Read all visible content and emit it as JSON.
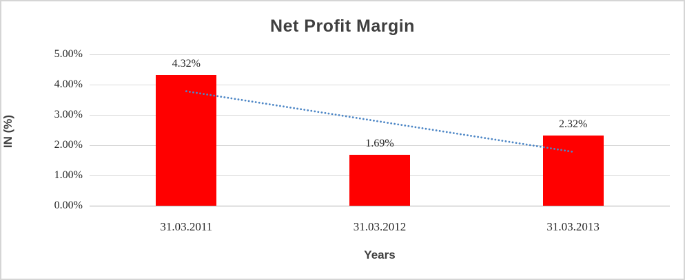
{
  "chart_data": {
    "type": "bar",
    "title": "Net Profit Margin",
    "xlabel": "Years",
    "ylabel": "IN (%)",
    "categories": [
      "31.03.2011",
      "31.03.2012",
      "31.03.2013"
    ],
    "values": [
      4.32,
      1.69,
      2.32
    ],
    "data_labels": [
      "4.32%",
      "1.69%",
      "2.32%"
    ],
    "ylim": [
      0,
      5
    ],
    "ytick_step": 1,
    "ytick_labels": [
      "0.00%",
      "1.00%",
      "2.00%",
      "3.00%",
      "4.00%",
      "5.00%"
    ],
    "grid": true,
    "legend": false,
    "bar_color": "#ff0000",
    "gridline_color": "#d9d9d9",
    "axis_line_color": "#ababab",
    "trendline": {
      "type": "linear",
      "style": "dotted",
      "color": "#4e87c6",
      "start_value": 3.78,
      "end_value": 1.78
    }
  }
}
